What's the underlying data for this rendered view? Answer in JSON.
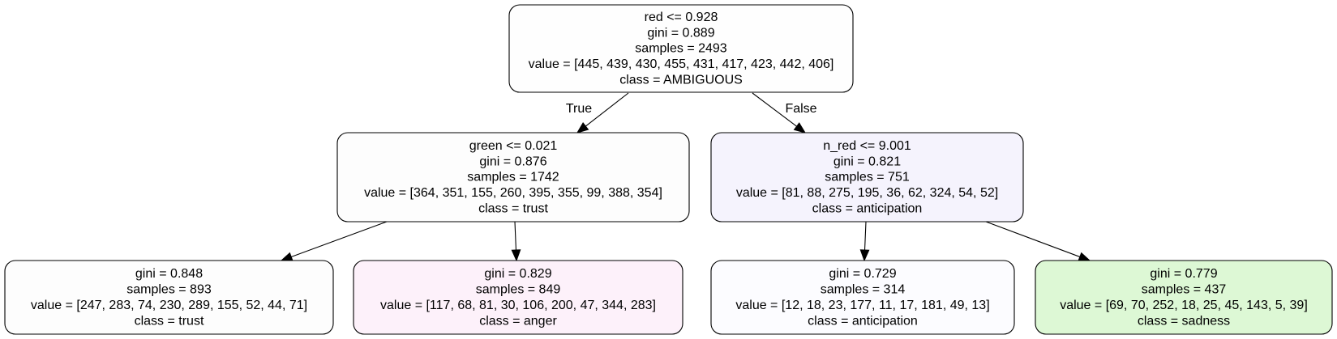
{
  "tree": {
    "nodes": [
      {
        "id": "root",
        "lines": [
          "red <= 0.928",
          "gini = 0.889",
          "samples = 2493",
          "value = [445, 439, 430, 455, 431, 417, 423, 442, 406]",
          "class = AMBIGUOUS"
        ],
        "fill": "#fefefe"
      },
      {
        "id": "left",
        "lines": [
          "green <= 0.021",
          "gini = 0.876",
          "samples = 1742",
          "value = [364, 351, 155, 260, 395, 355, 99, 388, 354]",
          "class = trust"
        ],
        "fill": "#fdfdfd"
      },
      {
        "id": "right",
        "lines": [
          "n_red <= 9.001",
          "gini = 0.821",
          "samples = 751",
          "value = [81, 88, 275, 195, 36, 62, 324, 54, 52]",
          "class = anticipation"
        ],
        "fill": "#f5f3fd"
      },
      {
        "id": "leaf-1",
        "lines": [
          "gini = 0.848",
          "samples = 893",
          "value = [247, 283, 74, 230, 289, 155, 52, 44, 71]",
          "class = trust"
        ],
        "fill": "#fdfdfd"
      },
      {
        "id": "leaf-2",
        "lines": [
          "gini = 0.829",
          "samples = 849",
          "value = [117, 68, 81, 30, 106, 200, 47, 344, 283]",
          "class = anger"
        ],
        "fill": "#fdf1fa"
      },
      {
        "id": "leaf-3",
        "lines": [
          "gini = 0.729",
          "samples = 314",
          "value = [12, 18, 23, 177, 11, 17, 181, 49, 13]",
          "class = anticipation"
        ],
        "fill": "#fcfcff"
      },
      {
        "id": "leaf-4",
        "lines": [
          "gini = 0.779",
          "samples = 437",
          "value = [69, 70, 252, 18, 25, 45, 143, 5, 39]",
          "class = sadness"
        ],
        "fill": "#ddf8d5"
      }
    ],
    "edges": [
      {
        "from": "root",
        "to": "left",
        "label": "True"
      },
      {
        "from": "root",
        "to": "right",
        "label": "False"
      },
      {
        "from": "left",
        "to": "leaf-1",
        "label": ""
      },
      {
        "from": "left",
        "to": "leaf-2",
        "label": ""
      },
      {
        "from": "right",
        "to": "leaf-3",
        "label": ""
      },
      {
        "from": "right",
        "to": "leaf-4",
        "label": ""
      }
    ]
  }
}
